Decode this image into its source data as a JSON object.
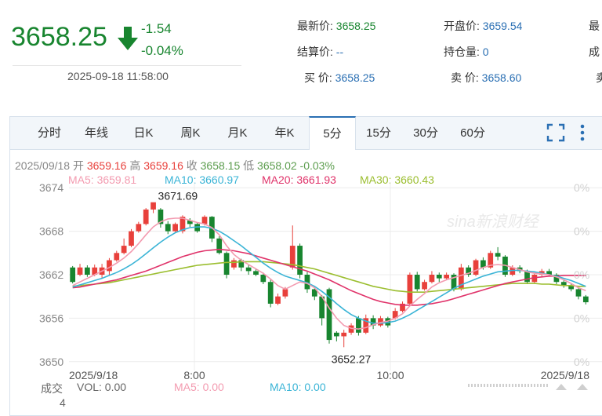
{
  "quote": {
    "price": "3658.25",
    "change": "-1.54",
    "change_pct": "-0.04%",
    "timestamp": "2025-09-18 11:58:00",
    "latest_label": "最新价:",
    "latest_value": "3658.25",
    "open_label": "开盘价:",
    "open_value": "3659.54",
    "settle_label": "结算价:",
    "settle_value": "--",
    "position_label": "持仓量:",
    "position_value": "0",
    "bid_label": "买 价:",
    "bid_value": "3658.25",
    "ask_label": "卖 价:",
    "ask_value": "3658.60",
    "cut1": "最",
    "cut2": "成",
    "cut3": "卖"
  },
  "tabs": [
    "分时",
    "年线",
    "日K",
    "周K",
    "月K",
    "年K",
    "5分",
    "15分",
    "30分",
    "60分"
  ],
  "active_tab": "5分",
  "bar_info": {
    "date": "2025/09/18",
    "open_label": "开",
    "open": "3659.16",
    "high_label": "高",
    "high": "3659.16",
    "close_label": "收",
    "close": "3658.15",
    "low_label": "低",
    "low": "3658.02",
    "pct": "-0.03%"
  },
  "ma_info": {
    "ma5": "MA5: 3659.81",
    "ma10": "MA10: 3660.97",
    "ma20": "MA20: 3661.93",
    "ma30": "MA30: 3660.43"
  },
  "volume_info": {
    "label": "成交",
    "vol": "VOL: 0.00",
    "ma5": "MA5: 0.00",
    "ma10": "MA10: 0.00",
    "axis_value": "4"
  },
  "colors": {
    "up": "#e8403b",
    "down": "#18852f",
    "ma5": "#f39bb0",
    "ma10": "#3ab4d6",
    "ma20": "#e0336a",
    "ma30": "#9bbe2f"
  },
  "chart_data": {
    "type": "candlestick",
    "y_ticks": [
      "3674",
      "3668",
      "3662",
      "3656",
      "3650"
    ],
    "y_tick_values": [
      3674,
      3668,
      3662,
      3656,
      3650
    ],
    "right_ticks": [
      "0%",
      "0%",
      "0%",
      "0%",
      "0%"
    ],
    "x_labels": [
      "2025/9/18",
      "8:00",
      "10:00",
      "2025/9/18"
    ],
    "ylim": [
      3649,
      3675
    ],
    "max_label": "3671.69",
    "min_label": "3652.27",
    "watermark": "sina新浪财经",
    "candles": [
      [
        3663,
        3661,
        3663.2,
        3660.8
      ],
      [
        3662,
        3663,
        3663.5,
        3661.8
      ],
      [
        3663,
        3662,
        3663.3,
        3661.7
      ],
      [
        3662,
        3663,
        3663.4,
        3661.8
      ],
      [
        3662,
        3663,
        3663.5,
        3661.5
      ],
      [
        3662.5,
        3664,
        3664.3,
        3662
      ],
      [
        3664,
        3665,
        3665.3,
        3663.8
      ],
      [
        3665,
        3666,
        3667,
        3664.8
      ],
      [
        3666,
        3668,
        3668.3,
        3665.8
      ],
      [
        3668,
        3669,
        3669.3,
        3667.8
      ],
      [
        3669,
        3671,
        3671.2,
        3668.8
      ],
      [
        3671,
        3672,
        3671.7,
        3670.5
      ],
      [
        3671,
        3669,
        3671.2,
        3668.5
      ],
      [
        3669,
        3668,
        3669.4,
        3667.6
      ],
      [
        3668,
        3669,
        3669.2,
        3667.9
      ],
      [
        3668,
        3670,
        3670.2,
        3667.7
      ],
      [
        3669.5,
        3669,
        3669.8,
        3668.6
      ],
      [
        3669,
        3668,
        3669.2,
        3667.8
      ],
      [
        3669,
        3670,
        3670.2,
        3668.8
      ],
      [
        3670,
        3667,
        3670.1,
        3666.5
      ],
      [
        3667,
        3665,
        3667.3,
        3664.8
      ],
      [
        3665,
        3662,
        3665.2,
        3661.5
      ],
      [
        3663,
        3664,
        3664.3,
        3662.7
      ],
      [
        3664,
        3663,
        3664.2,
        3662.5
      ],
      [
        3663,
        3662.5,
        3663.3,
        3662
      ],
      [
        3662.5,
        3662,
        3662.8,
        3661.8
      ],
      [
        3662,
        3661,
        3662.3,
        3660.7
      ],
      [
        3661,
        3658,
        3661.3,
        3657.5
      ],
      [
        3658,
        3659,
        3659.4,
        3657.8
      ],
      [
        3659,
        3660,
        3660.3,
        3658.7
      ],
      [
        3663,
        3666,
        3668.8,
        3662.7
      ],
      [
        3666,
        3662,
        3666.3,
        3661.5
      ],
      [
        3662,
        3660,
        3662.4,
        3659.5
      ],
      [
        3660,
        3659,
        3660.3,
        3658.5
      ],
      [
        3659,
        3656,
        3659.2,
        3655
      ],
      [
        3660,
        3653,
        3660.2,
        3652.5
      ],
      [
        3654,
        3653.5,
        3654.2,
        3652.8
      ],
      [
        3653.5,
        3654,
        3654.4,
        3652
      ],
      [
        3654,
        3655,
        3655.3,
        3653.7
      ],
      [
        3656,
        3654,
        3656.3,
        3653.6
      ],
      [
        3654,
        3656,
        3656.5,
        3653.8
      ],
      [
        3656,
        3655,
        3656.4,
        3654.5
      ],
      [
        3655,
        3656,
        3656.3,
        3654.8
      ],
      [
        3656,
        3655,
        3656.2,
        3654.7
      ],
      [
        3656,
        3657,
        3657.4,
        3655.8
      ],
      [
        3657,
        3658,
        3658.3,
        3656.8
      ],
      [
        3658,
        3662,
        3662.3,
        3657.8
      ],
      [
        3662,
        3660,
        3662.4,
        3659.7
      ],
      [
        3660,
        3661,
        3661.3,
        3659.8
      ],
      [
        3661,
        3662,
        3662.5,
        3660.8
      ],
      [
        3662,
        3661.5,
        3662.3,
        3661
      ],
      [
        3661.5,
        3662,
        3662.3,
        3661.3
      ],
      [
        3662,
        3660,
        3662.2,
        3659.7
      ],
      [
        3660,
        3663,
        3663.5,
        3659.8
      ],
      [
        3663,
        3662,
        3663.3,
        3661.7
      ],
      [
        3662,
        3664,
        3664.2,
        3661.8
      ],
      [
        3664,
        3663,
        3664.4,
        3662.7
      ],
      [
        3663,
        3665,
        3665.3,
        3662.8
      ],
      [
        3665,
        3664.5,
        3665.8,
        3664
      ],
      [
        3664.5,
        3662,
        3664.7,
        3661.7
      ],
      [
        3662,
        3663,
        3663.3,
        3661.8
      ],
      [
        3663,
        3662.5,
        3663.3,
        3662.2
      ],
      [
        3662.5,
        3661,
        3662.7,
        3660.7
      ],
      [
        3661,
        3662,
        3662.3,
        3660.8
      ],
      [
        3662,
        3662.5,
        3662.8,
        3661.8
      ],
      [
        3662.5,
        3662,
        3662.8,
        3661.8
      ],
      [
        3662,
        3661,
        3662.2,
        3660.7
      ],
      [
        3661,
        3660.5,
        3661.3,
        3660.2
      ],
      [
        3660.5,
        3660,
        3660.8,
        3659.7
      ],
      [
        3660,
        3659,
        3660.2,
        3658.6
      ],
      [
        3659,
        3658.2,
        3659.2,
        3657.9
      ]
    ],
    "ma5": [
      3660.5,
      3661,
      3661.5,
      3662,
      3662.5,
      3663,
      3663.6,
      3664.3,
      3665.2,
      3666.3,
      3667.5,
      3668.6,
      3669.3,
      3669.7,
      3669.8,
      3669.8,
      3669.5,
      3669.2,
      3669,
      3668.5,
      3667.5,
      3666,
      3664.8,
      3664,
      3663.4,
      3662.8,
      3662.2,
      3661.4,
      3660.5,
      3660,
      3660.5,
      3661,
      3660.8,
      3660.2,
      3659,
      3657.4,
      3656,
      3655,
      3654.6,
      3654.5,
      3654.7,
      3655.1,
      3655.4,
      3655.6,
      3656,
      3656.6,
      3657.7,
      3658.6,
      3659.4,
      3660.3,
      3660.9,
      3661.3,
      3661.6,
      3661.9,
      3662.2,
      3662.6,
      3663,
      3663.3,
      3663.4,
      3663.3,
      3663,
      3662.7,
      3662.4,
      3662.2,
      3662.1,
      3662,
      3661.7,
      3661.3,
      3660.8,
      3660.2,
      3659.8
    ],
    "ma10": [
      3660.3,
      3660.6,
      3660.9,
      3661.2,
      3661.5,
      3661.9,
      3662.3,
      3662.8,
      3663.4,
      3664.1,
      3664.9,
      3665.7,
      3666.5,
      3667.2,
      3667.8,
      3668.2,
      3668.5,
      3668.6,
      3668.6,
      3668.4,
      3668,
      3667.4,
      3666.7,
      3666,
      3665.2,
      3664.4,
      3663.6,
      3662.9,
      3662.3,
      3661.8,
      3661.5,
      3661.2,
      3660.9,
      3660.4,
      3659.7,
      3658.9,
      3658,
      3657.2,
      3656.5,
      3656,
      3655.6,
      3655.3,
      3655.3,
      3655.4,
      3655.6,
      3656,
      3656.5,
      3657.1,
      3657.7,
      3658.3,
      3658.9,
      3659.5,
      3660.1,
      3660.6,
      3661,
      3661.4,
      3661.8,
      3662.1,
      3662.4,
      3662.5,
      3662.6,
      3662.6,
      3662.5,
      3662.4,
      3662.2,
      3662,
      3661.8,
      3661.5,
      3661.2,
      3660.8,
      3660.4
    ],
    "ma20": [
      3660.2,
      3660.3,
      3660.5,
      3660.7,
      3660.9,
      3661.1,
      3661.3,
      3661.6,
      3661.9,
      3662.2,
      3662.5,
      3662.9,
      3663.3,
      3663.7,
      3664.1,
      3664.5,
      3664.8,
      3665.1,
      3665.3,
      3665.4,
      3665.5,
      3665.4,
      3665.3,
      3665.1,
      3664.9,
      3664.6,
      3664.3,
      3664,
      3663.7,
      3663.4,
      3663.1,
      3662.8,
      3662.5,
      3662.1,
      3661.7,
      3661.3,
      3660.8,
      3660.3,
      3659.8,
      3659.4,
      3659,
      3658.6,
      3658.3,
      3658.1,
      3657.9,
      3657.8,
      3657.8,
      3657.8,
      3657.9,
      3658,
      3658.2,
      3658.4,
      3658.7,
      3659,
      3659.3,
      3659.6,
      3659.9,
      3660.2,
      3660.5,
      3660.8,
      3661,
      3661.2,
      3661.4,
      3661.6,
      3661.7,
      3661.8,
      3661.8,
      3661.9,
      3661.9,
      3661.9,
      3661.9
    ],
    "ma30": [
      3660.4,
      3660.5,
      3660.6,
      3660.7,
      3660.8,
      3660.9,
      3661.1,
      3661.3,
      3661.5,
      3661.7,
      3661.9,
      3662.1,
      3662.3,
      3662.5,
      3662.7,
      3662.9,
      3663.1,
      3663.3,
      3663.4,
      3663.5,
      3663.6,
      3663.7,
      3663.7,
      3663.8,
      3663.8,
      3663.8,
      3663.8,
      3663.7,
      3663.6,
      3663.5,
      3663.4,
      3663.2,
      3663,
      3662.8,
      3662.5,
      3662.2,
      3661.9,
      3661.6,
      3661.3,
      3661,
      3660.7,
      3660.4,
      3660.2,
      3660,
      3659.8,
      3659.7,
      3659.6,
      3659.6,
      3659.6,
      3659.7,
      3659.8,
      3659.9,
      3660,
      3660.1,
      3660.2,
      3660.3,
      3660.4,
      3660.5,
      3660.6,
      3660.7,
      3660.8,
      3660.8,
      3660.8,
      3660.8,
      3660.7,
      3660.7,
      3660.6,
      3660.5,
      3660.5,
      3660.4,
      3660.4
    ]
  }
}
